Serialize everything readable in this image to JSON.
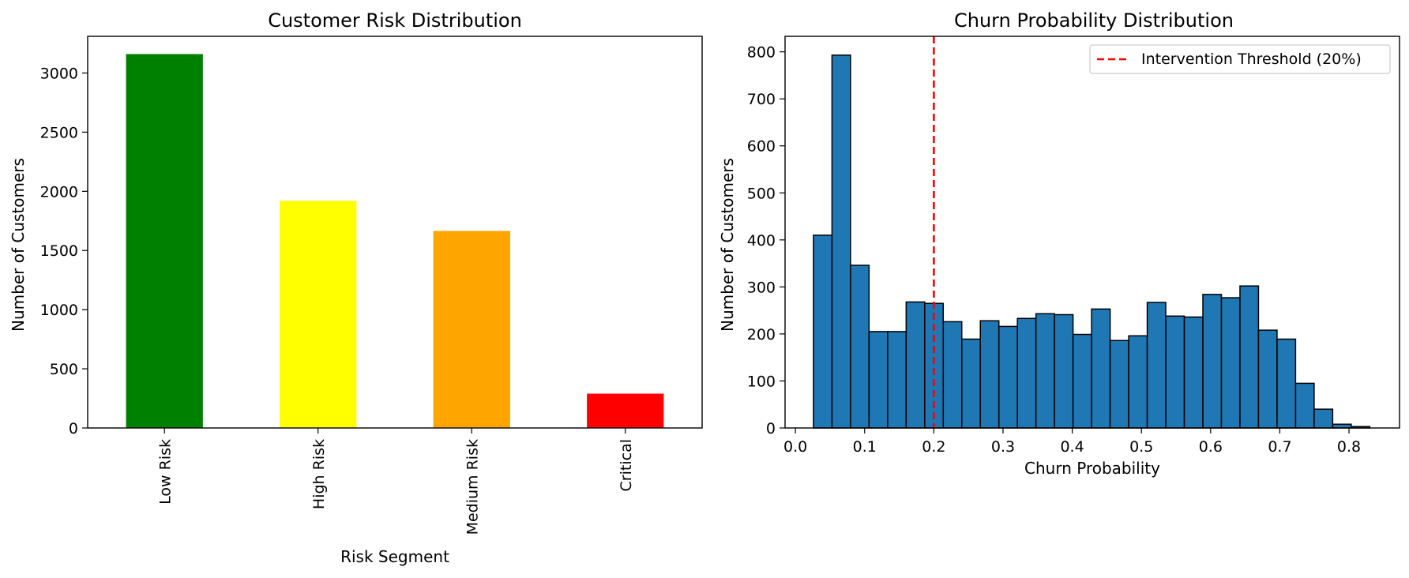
{
  "chart_data": [
    {
      "type": "bar",
      "title": "Customer Risk Distribution",
      "xlabel": "Risk Segment",
      "ylabel": "Number of Customers",
      "categories": [
        "Low Risk",
        "High Risk",
        "Medium Risk",
        "Critical"
      ],
      "values": [
        3160,
        1920,
        1665,
        290
      ],
      "colors": [
        "#008000",
        "#ffff00",
        "#ffa500",
        "#ff0000"
      ],
      "ylim": [
        0,
        3310
      ],
      "yticks": [
        0,
        500,
        1000,
        1500,
        2000,
        2500,
        3000
      ],
      "grid": false,
      "legend": "none"
    },
    {
      "type": "bar",
      "title": "Churn Probability Distribution",
      "xlabel": "Churn Probability",
      "ylabel": "Number of Customers",
      "bin_start": 0.026,
      "bin_width": 0.0268,
      "values": [
        410,
        793,
        346,
        205,
        205,
        268,
        265,
        226,
        189,
        228,
        216,
        233,
        243,
        241,
        199,
        253,
        186,
        196,
        267,
        238,
        236,
        284,
        277,
        302,
        208,
        189,
        95,
        40,
        8,
        3
      ],
      "bar_color": "#1f77b4",
      "edge_color": "#000000",
      "xlim": [
        -0.015,
        0.873
      ],
      "ylim": [
        0,
        833
      ],
      "xticks": [
        0.0,
        0.1,
        0.2,
        0.3,
        0.4,
        0.5,
        0.6,
        0.7,
        0.8
      ],
      "xtick_labels": [
        "0.0",
        "0.1",
        "0.2",
        "0.3",
        "0.4",
        "0.5",
        "0.6",
        "0.7",
        "0.8"
      ],
      "yticks": [
        0,
        100,
        200,
        300,
        400,
        500,
        600,
        700,
        800
      ],
      "threshold": {
        "x": 0.2,
        "label": "Intervention Threshold (20%)",
        "color": "#ff0000"
      },
      "grid": false,
      "legend": "top-right"
    }
  ]
}
